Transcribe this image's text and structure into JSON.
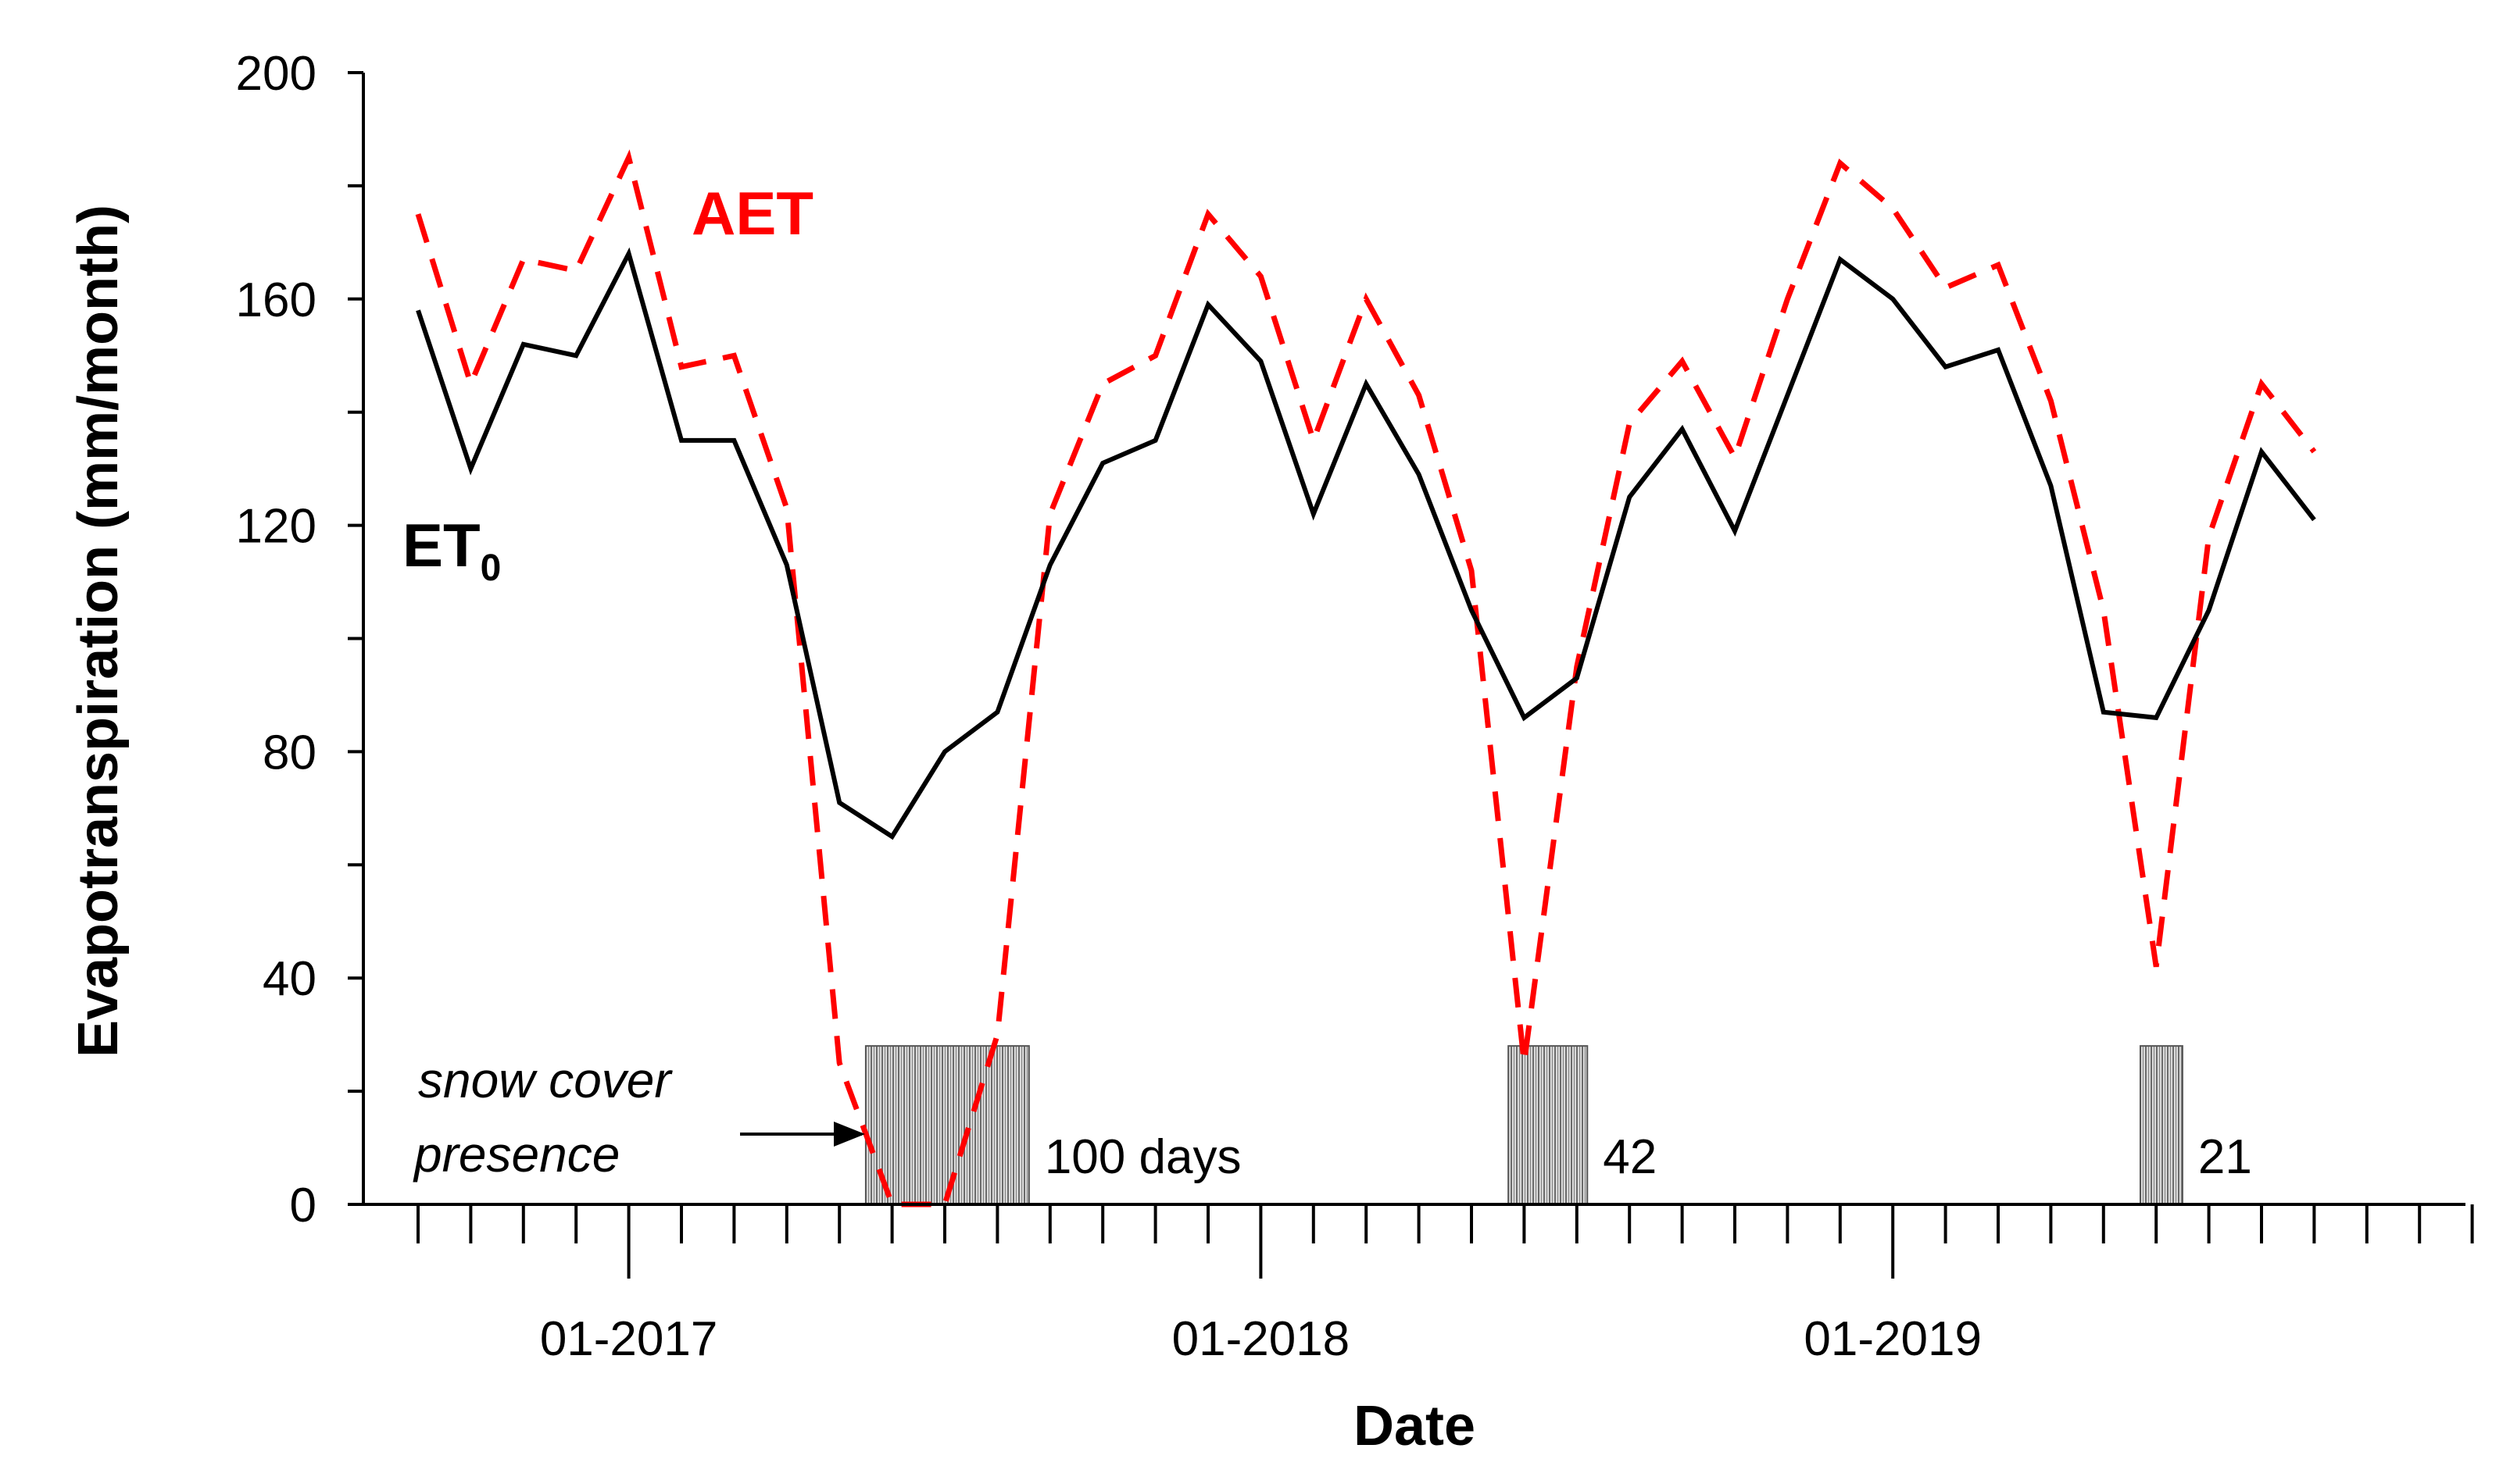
{
  "chart_data": {
    "type": "line",
    "title": "",
    "xlabel": "Date",
    "ylabel": "Evapotranspiration (mm/month)",
    "ylim": [
      0,
      200
    ],
    "yticks": [
      "0",
      "40",
      "80",
      "120",
      "160",
      "200"
    ],
    "xtick_labels": [
      {
        "month_index": 4,
        "label": "01-2017"
      },
      {
        "month_index": 16,
        "label": "01-2018"
      },
      {
        "month_index": 28,
        "label": "01-2019"
      }
    ],
    "x_months": 40,
    "series": [
      {
        "name": "ET",
        "subscript": "0",
        "color": "#000000",
        "style": "solid",
        "start_index": 0,
        "values": [
          158,
          130,
          152,
          150,
          168,
          135,
          135,
          113,
          71,
          65,
          80,
          87,
          113,
          131,
          135,
          159,
          149,
          122,
          145,
          129,
          105,
          86,
          93,
          125,
          137,
          119,
          143,
          167,
          160,
          148,
          151,
          127,
          87,
          86,
          105,
          133,
          121
        ]
      },
      {
        "name": "AET",
        "color": "#ff0000",
        "style": "dashed",
        "start_index": 0,
        "values": [
          175,
          145,
          167,
          165,
          185,
          148,
          150,
          123,
          25,
          0,
          0,
          30,
          122,
          145,
          150,
          175,
          164,
          135,
          160,
          143,
          112,
          25,
          95,
          138,
          149,
          132,
          160,
          184,
          176,
          162,
          166,
          142,
          105,
          42,
          118,
          145,
          133
        ]
      }
    ],
    "snow_cover_bars": [
      {
        "start_index": 8.5,
        "end_index": 11.6,
        "label": "100 days"
      },
      {
        "start_index": 20.7,
        "end_index": 22.2,
        "label": "42"
      },
      {
        "start_index": 32.7,
        "end_index": 33.5,
        "label": "21"
      }
    ],
    "snow_bar_height": 28,
    "annotation": {
      "line1": "snow cover",
      "line2": "presence"
    }
  }
}
